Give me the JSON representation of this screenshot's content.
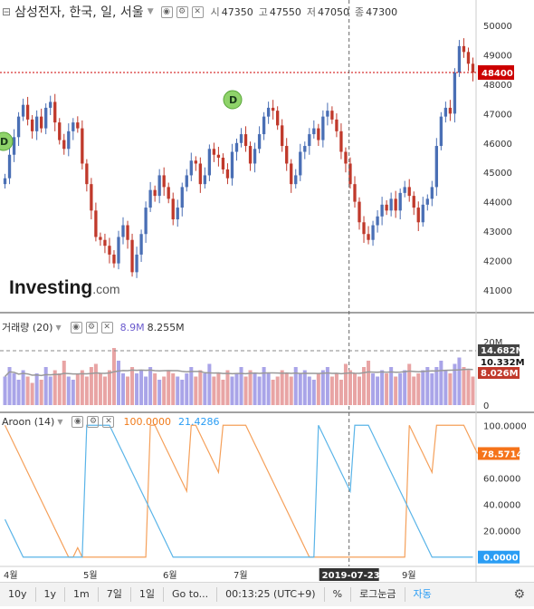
{
  "header": {
    "title": "삼성전자, 한국, 일, 서울",
    "ohlc_labels": [
      "시",
      "고",
      "저",
      "종"
    ],
    "ohlc_values": [
      "47350",
      "47550",
      "47050",
      "47300"
    ]
  },
  "volume_label": "거래량 (20)",
  "volume_values": [
    "8.9M",
    "8.255M"
  ],
  "aroon_label": "Aroon (14)",
  "aroon_values": [
    "100.0000",
    "21.4286"
  ],
  "logo": {
    "main": "Investing",
    "suffix": ".com"
  },
  "bottom_bar": {
    "items": [
      "10y",
      "1y",
      "1m",
      "7일",
      "1일",
      "Go to..."
    ],
    "time": "00:13:25 (UTC+9)",
    "right_items": [
      "%",
      "로그눈금",
      "자동"
    ]
  },
  "colors": {
    "up": "#4a6fb5",
    "down": "#c0392b",
    "up_vol": "#a9a4e8",
    "down_vol": "#e8a4a4",
    "aroon_up": "#f5a05a",
    "aroon_down": "#5ab4e8",
    "price_line": "#cc0000",
    "ma": "#999999"
  },
  "chart_data": [
    {
      "type": "candlestick",
      "title": "삼성전자, 한국, 일, 서울",
      "x_tick_labels": [
        "4월",
        "5월",
        "6월",
        "7월",
        "9월"
      ],
      "crosshair_date": "2019-07-23",
      "ylim": [
        40500,
        50500
      ],
      "y_ticks": [
        41000,
        42000,
        43000,
        44000,
        45000,
        46000,
        47000,
        48000,
        49000,
        50000
      ],
      "y_tick_labels": [
        "41000",
        "42000",
        "43000",
        "44000",
        "45000",
        "46000",
        "47000",
        "48000",
        "49000",
        "50000"
      ],
      "last_price": 48400,
      "last_price_label": "48400",
      "dividend_markers": [
        {
          "label": "D",
          "index": 0,
          "price": 46000
        },
        {
          "label": "D",
          "index": 61,
          "price": 48300
        }
      ],
      "closes": [
        44800,
        45600,
        46200,
        46900,
        47300,
        46800,
        46400,
        46900,
        46500,
        47200,
        47400,
        46700,
        46100,
        45800,
        46400,
        46700,
        46500,
        45300,
        44600,
        43700,
        42800,
        42700,
        42500,
        42200,
        41900,
        42800,
        43200,
        42700,
        41600,
        42200,
        42900,
        43800,
        44400,
        44200,
        44900,
        44500,
        44100,
        43400,
        43800,
        44500,
        44900,
        45400,
        45300,
        44600,
        44900,
        45800,
        45600,
        45500,
        45100,
        44800,
        45700,
        46000,
        46300,
        45900,
        45300,
        45800,
        46300,
        46900,
        47200,
        47100,
        46600,
        45900,
        45300,
        44600,
        44900,
        45700,
        45900,
        46300,
        46500,
        46100,
        46900,
        47100,
        46800,
        46400,
        45700,
        45300,
        44600,
        44000,
        43300,
        42900,
        42700,
        43200,
        43500,
        43900,
        43700,
        44100,
        43700,
        44300,
        44500,
        44200,
        43800,
        43300,
        43900,
        44100,
        44500,
        45900,
        46900,
        47200,
        47000,
        48400,
        49300,
        49100,
        48700,
        48400
      ],
      "volume_ylim": [
        0,
        22
      ],
      "volume_y_tick_labels": [
        "0",
        "10M",
        "20M"
      ],
      "volume_markers": [
        "14.682M",
        "10.332M",
        "8.026M"
      ],
      "volume": [
        9,
        12,
        10,
        8,
        11,
        9,
        7,
        10,
        8,
        12,
        9,
        11,
        10,
        14,
        9,
        8,
        10,
        11,
        9,
        12,
        13,
        10,
        9,
        11,
        18,
        14,
        10,
        9,
        12,
        10,
        11,
        9,
        12,
        10,
        8,
        9,
        11,
        10,
        9,
        8,
        10,
        12,
        9,
        11,
        10,
        13,
        9,
        10,
        8,
        11,
        9,
        10,
        12,
        9,
        11,
        10,
        9,
        12,
        10,
        8,
        9,
        11,
        10,
        9,
        12,
        10,
        11,
        9,
        8,
        10,
        11,
        12,
        9,
        10,
        8,
        13,
        11,
        10,
        9,
        12,
        14,
        10,
        9,
        11,
        10,
        12,
        9,
        10,
        11,
        13,
        9,
        10,
        11,
        12,
        10,
        12,
        14,
        11,
        10,
        13,
        15,
        12,
        11,
        9
      ],
      "aroon_ylim": [
        -5,
        105
      ],
      "aroon_y_tick_labels": [
        "0.0000",
        "20.0000",
        "40.0000",
        "60.0000",
        "80.0000",
        "100.0000"
      ],
      "aroon_last_labels": [
        "78.5714",
        "0.0000"
      ],
      "aroon_up": [
        100,
        92.9,
        85.7,
        78.6,
        71.4,
        64.3,
        57.1,
        50,
        42.9,
        35.7,
        28.6,
        21.4,
        14.3,
        7.1,
        0,
        0,
        7.1,
        0,
        0,
        0,
        0,
        0,
        0,
        0,
        0,
        0,
        0,
        0,
        0,
        0,
        0,
        0,
        100,
        100,
        92.9,
        85.7,
        78.6,
        71.4,
        64.3,
        57.1,
        50,
        100,
        100,
        92.9,
        85.7,
        78.6,
        71.4,
        64.3,
        100,
        100,
        100,
        100,
        100,
        100,
        92.9,
        85.7,
        78.6,
        71.4,
        64.3,
        57.1,
        50,
        42.9,
        35.7,
        28.6,
        21.4,
        14.3,
        7.1,
        0,
        0,
        0,
        0,
        0,
        0,
        0,
        0,
        0,
        0,
        0,
        0,
        0,
        0,
        0,
        0,
        0,
        0,
        0,
        0,
        0,
        0,
        100,
        92.9,
        85.7,
        78.6,
        71.4,
        64.3,
        100,
        100,
        100,
        100,
        100,
        100,
        100,
        92.9,
        85.7,
        78.6
      ],
      "aroon_down": [
        28.6,
        21.4,
        14.3,
        7.1,
        0,
        0,
        0,
        0,
        0,
        0,
        0,
        0,
        0,
        0,
        0,
        0,
        0,
        0,
        100,
        100,
        100,
        100,
        100,
        100,
        92.9,
        85.7,
        78.6,
        71.4,
        64.3,
        57.1,
        50,
        42.9,
        35.7,
        28.6,
        21.4,
        14.3,
        7.1,
        0,
        0,
        0,
        0,
        0,
        0,
        0,
        0,
        0,
        0,
        0,
        0,
        0,
        0,
        0,
        0,
        0,
        0,
        0,
        0,
        0,
        0,
        0,
        0,
        0,
        0,
        0,
        0,
        0,
        0,
        0,
        0,
        100,
        92.9,
        85.7,
        78.6,
        71.4,
        64.3,
        57.1,
        50,
        100,
        100,
        100,
        100,
        92.9,
        85.7,
        78.6,
        71.4,
        64.3,
        57.1,
        50,
        42.9,
        35.7,
        28.6,
        21.4,
        14.3,
        7.1,
        0,
        0,
        0,
        0,
        0,
        0,
        0,
        0,
        0,
        0
      ]
    }
  ]
}
